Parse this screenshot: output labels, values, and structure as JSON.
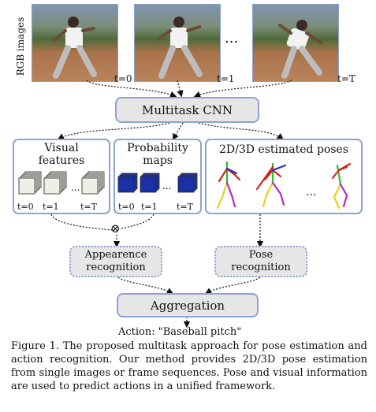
{
  "rgb_label": "RGB images",
  "frames": [
    {
      "label": "t=0"
    },
    {
      "label": "t=1"
    },
    {
      "label": "t=T"
    }
  ],
  "ellipsis": "...",
  "multitask_cnn": "Multitask CNN",
  "panels": {
    "visual_features": {
      "title_line1": "Visual",
      "title_line2": "features",
      "labels": [
        "t=0",
        "t=1",
        "t=T"
      ]
    },
    "probability_maps": {
      "title_line1": "Probability",
      "title_line2": "maps",
      "labels": [
        "t=0",
        "t=1",
        "t=T"
      ]
    },
    "poses": {
      "title": "2D/3D estimated poses"
    }
  },
  "operator": "⊗",
  "appearance": {
    "line1": "Appearence",
    "line2": "recognition"
  },
  "pose_recognition": {
    "line1": "Pose",
    "line2": "recognition"
  },
  "aggregation": "Aggregation",
  "action": "Action: \"Baseball pitch\"",
  "caption": "Figure 1.   The proposed multitask approach for pose estimation and action recognition.  Our method provides 2D/3D pose estimation from single images or frame sequences.  Pose and visual information are used to predict actions in a unified framework.",
  "colors": {
    "box_border": "#8ea2d6",
    "box_fill": "#e6e6e6",
    "prob_map": "#1b2fa6"
  }
}
